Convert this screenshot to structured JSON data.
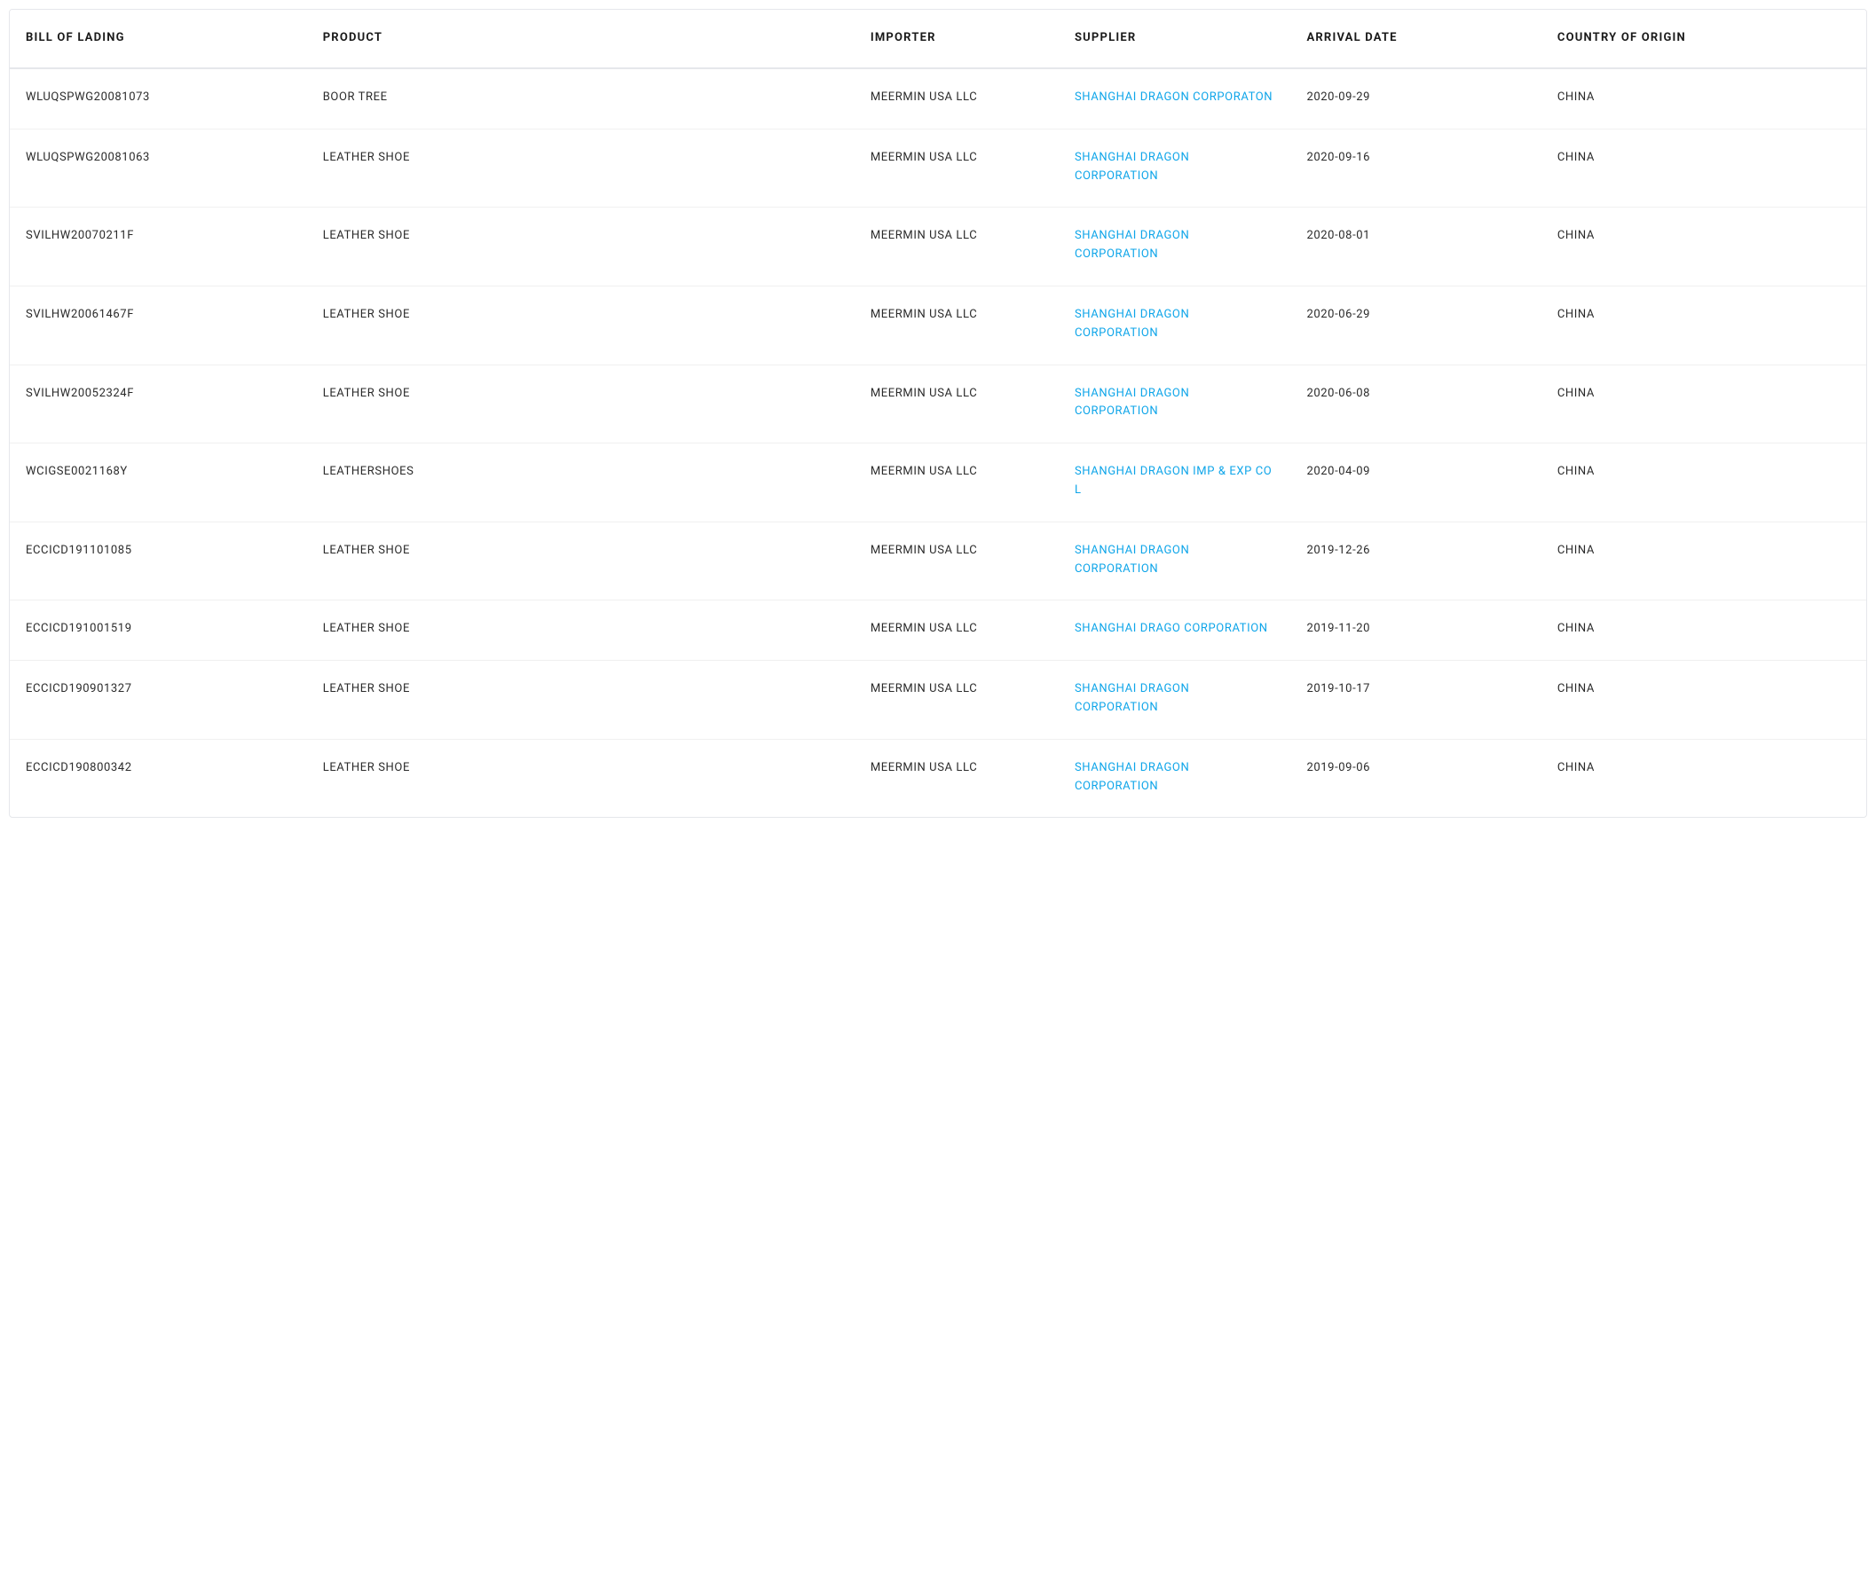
{
  "table": {
    "columns": [
      {
        "key": "bol",
        "label": "BILL OF LADING",
        "class": "col-bol"
      },
      {
        "key": "product",
        "label": "PRODUCT",
        "class": "col-product"
      },
      {
        "key": "importer",
        "label": "IMPORTER",
        "class": "col-importer"
      },
      {
        "key": "supplier",
        "label": "SUPPLIER",
        "class": "col-supplier"
      },
      {
        "key": "arrival",
        "label": "ARRIVAL DATE",
        "class": "col-arrival"
      },
      {
        "key": "country",
        "label": "COUNTRY OF ORIGIN",
        "class": "col-country"
      }
    ],
    "rows": [
      {
        "bol": "WLUQSPWG20081073",
        "product": "BOOR TREE",
        "importer": "MEERMIN USA LLC",
        "supplier": "SHANGHAI DRAGON CORPORATON",
        "arrival": "2020-09-29",
        "country": "CHINA"
      },
      {
        "bol": "WLUQSPWG20081063",
        "product": "LEATHER SHOE",
        "importer": "MEERMIN USA LLC",
        "supplier": "SHANGHAI DRAGON CORPORATION",
        "arrival": "2020-09-16",
        "country": "CHINA"
      },
      {
        "bol": "SVILHW20070211F",
        "product": "LEATHER SHOE",
        "importer": "MEERMIN USA LLC",
        "supplier": "SHANGHAI DRAGON CORPORATION",
        "arrival": "2020-08-01",
        "country": "CHINA"
      },
      {
        "bol": "SVILHW20061467F",
        "product": "LEATHER SHOE",
        "importer": "MEERMIN USA LLC",
        "supplier": "SHANGHAI DRAGON CORPORATION",
        "arrival": "2020-06-29",
        "country": "CHINA"
      },
      {
        "bol": "SVILHW20052324F",
        "product": "LEATHER SHOE",
        "importer": "MEERMIN USA LLC",
        "supplier": "SHANGHAI DRAGON CORPORATION",
        "arrival": "2020-06-08",
        "country": "CHINA"
      },
      {
        "bol": "WCIGSE0021168Y",
        "product": "LEATHERSHOES",
        "importer": "MEERMIN USA LLC",
        "supplier": "SHANGHAI DRAGON IMP & EXP CO L",
        "arrival": "2020-04-09",
        "country": "CHINA"
      },
      {
        "bol": "ECCICD191101085",
        "product": "LEATHER SHOE",
        "importer": "MEERMIN USA LLC",
        "supplier": "SHANGHAI DRAGON CORPORATION",
        "arrival": "2019-12-26",
        "country": "CHINA"
      },
      {
        "bol": "ECCICD191001519",
        "product": "LEATHER SHOE",
        "importer": "MEERMIN USA LLC",
        "supplier": "SHANGHAI DRAGO CORPORATION",
        "arrival": "2019-11-20",
        "country": "CHINA"
      },
      {
        "bol": "ECCICD190901327",
        "product": "LEATHER SHOE",
        "importer": "MEERMIN USA LLC",
        "supplier": "SHANGHAI DRAGON CORPORATION",
        "arrival": "2019-10-17",
        "country": "CHINA"
      },
      {
        "bol": "ECCICD190800342",
        "product": "LEATHER SHOE",
        "importer": "MEERMIN USA LLC",
        "supplier": "SHANGHAI DRAGON CORPORATION",
        "arrival": "2019-09-06",
        "country": "CHINA"
      }
    ],
    "link_color": "#0ea5e9",
    "text_color": "#2a2a2a",
    "header_text_color": "#1a1a1a",
    "border_color": "#e5e7eb",
    "row_border_color": "#f0f0f0",
    "background_color": "#ffffff"
  }
}
